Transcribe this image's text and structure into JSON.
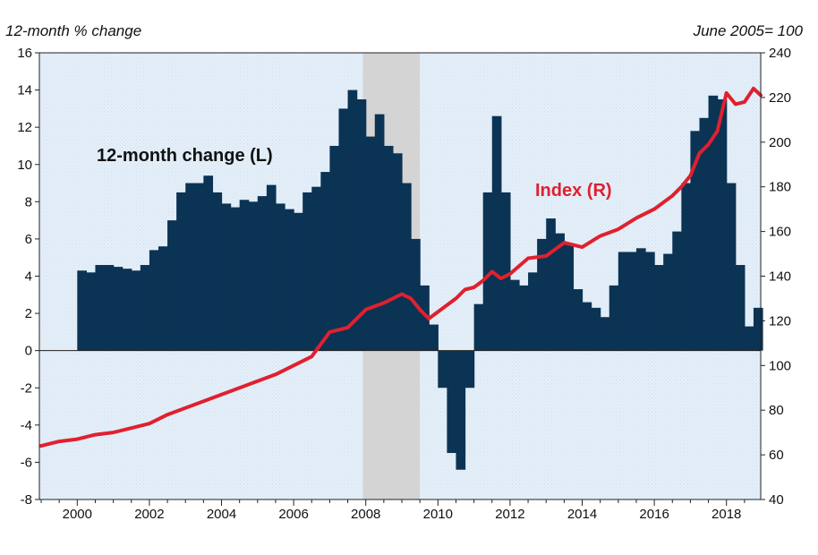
{
  "chart_data": {
    "type": "bar+line",
    "title": "",
    "left_axis": {
      "title": "12-month % change",
      "ylim": [
        -8,
        16
      ],
      "ticks": [
        -8,
        -6,
        -4,
        -2,
        0,
        2,
        4,
        6,
        8,
        10,
        12,
        14,
        16
      ]
    },
    "right_axis": {
      "title": "June 2005= 100",
      "ylim": [
        40,
        240
      ],
      "ticks": [
        40,
        60,
        80,
        100,
        120,
        140,
        160,
        180,
        200,
        220,
        240
      ]
    },
    "x_axis": {
      "xlim": [
        1998.95,
        2018.95
      ],
      "tick_labels": [
        "2000",
        "2002",
        "2004",
        "2006",
        "2008",
        "2010",
        "2012",
        "2014",
        "2016",
        "2018"
      ],
      "tick_years": [
        2000,
        2002,
        2004,
        2006,
        2008,
        2010,
        2012,
        2014,
        2016,
        2018
      ]
    },
    "recession": {
      "start": 2007.92,
      "end": 2009.5
    },
    "annotations": {
      "change_label": "12-month change (L)",
      "index_label": "Index (R)"
    },
    "colors": {
      "bars": "#0b3354",
      "line": "#e0202f",
      "recession": "#d4d4d4",
      "panel": "#e4eff8",
      "axis": "#222222"
    },
    "series": [
      {
        "name": "12-month change (L)",
        "type": "bar",
        "axis": "left",
        "points": [
          [
            2000.0,
            4.3
          ],
          [
            2000.25,
            4.2
          ],
          [
            2000.5,
            4.6
          ],
          [
            2000.75,
            4.6
          ],
          [
            2001.0,
            4.5
          ],
          [
            2001.25,
            4.4
          ],
          [
            2001.5,
            4.3
          ],
          [
            2001.75,
            4.6
          ],
          [
            2002.0,
            5.4
          ],
          [
            2002.25,
            5.6
          ],
          [
            2002.5,
            7.0
          ],
          [
            2002.75,
            8.5
          ],
          [
            2003.0,
            9.0
          ],
          [
            2003.25,
            9.0
          ],
          [
            2003.5,
            9.4
          ],
          [
            2003.75,
            8.5
          ],
          [
            2004.0,
            7.9
          ],
          [
            2004.25,
            7.7
          ],
          [
            2004.5,
            8.1
          ],
          [
            2004.75,
            8.0
          ],
          [
            2005.0,
            8.3
          ],
          [
            2005.25,
            8.9
          ],
          [
            2005.5,
            7.9
          ],
          [
            2005.75,
            7.6
          ],
          [
            2006.0,
            7.4
          ],
          [
            2006.25,
            8.5
          ],
          [
            2006.5,
            8.8
          ],
          [
            2006.75,
            9.6
          ],
          [
            2007.0,
            11.0
          ],
          [
            2007.25,
            13.0
          ],
          [
            2007.5,
            14.0
          ],
          [
            2007.75,
            13.5
          ],
          [
            2008.0,
            11.5
          ],
          [
            2008.25,
            12.7
          ],
          [
            2008.5,
            11.0
          ],
          [
            2008.75,
            10.6
          ],
          [
            2009.0,
            9.0
          ],
          [
            2009.25,
            6.0
          ],
          [
            2009.5,
            3.5
          ],
          [
            2009.75,
            1.4
          ],
          [
            2010.0,
            -2.0
          ],
          [
            2010.25,
            -5.5
          ],
          [
            2010.5,
            -6.4
          ],
          [
            2010.75,
            -2.0
          ],
          [
            2011.0,
            2.5
          ],
          [
            2011.25,
            8.5
          ],
          [
            2011.5,
            12.6
          ],
          [
            2011.75,
            8.5
          ],
          [
            2012.0,
            3.8
          ],
          [
            2012.25,
            3.5
          ],
          [
            2012.5,
            4.2
          ],
          [
            2012.75,
            6.0
          ],
          [
            2013.0,
            7.1
          ],
          [
            2013.25,
            6.3
          ],
          [
            2013.5,
            5.7
          ],
          [
            2013.75,
            3.3
          ],
          [
            2014.0,
            2.6
          ],
          [
            2014.25,
            2.3
          ],
          [
            2014.5,
            1.8
          ],
          [
            2014.75,
            3.5
          ],
          [
            2015.0,
            5.3
          ],
          [
            2015.25,
            5.3
          ],
          [
            2015.5,
            5.5
          ],
          [
            2015.75,
            5.3
          ],
          [
            2016.0,
            4.6
          ],
          [
            2016.25,
            5.2
          ],
          [
            2016.5,
            6.4
          ],
          [
            2016.75,
            9.0
          ],
          [
            2017.0,
            11.8
          ],
          [
            2017.25,
            12.5
          ],
          [
            2017.5,
            13.7
          ],
          [
            2017.75,
            13.5
          ],
          [
            2018.0,
            9.0
          ],
          [
            2018.25,
            4.6
          ],
          [
            2018.5,
            1.3
          ],
          [
            2018.75,
            2.3
          ]
        ]
      },
      {
        "name": "Index (R)",
        "type": "line",
        "axis": "right",
        "points": [
          [
            1999.0,
            64
          ],
          [
            1999.5,
            66
          ],
          [
            2000.0,
            67
          ],
          [
            2000.5,
            69
          ],
          [
            2001.0,
            70
          ],
          [
            2001.5,
            72
          ],
          [
            2002.0,
            74
          ],
          [
            2002.5,
            78
          ],
          [
            2003.0,
            81
          ],
          [
            2003.5,
            84
          ],
          [
            2004.0,
            87
          ],
          [
            2004.5,
            90
          ],
          [
            2005.0,
            93
          ],
          [
            2005.5,
            96
          ],
          [
            2006.0,
            100
          ],
          [
            2006.5,
            104
          ],
          [
            2007.0,
            115
          ],
          [
            2007.5,
            117
          ],
          [
            2008.0,
            125
          ],
          [
            2008.5,
            128
          ],
          [
            2009.0,
            132
          ],
          [
            2009.25,
            130
          ],
          [
            2009.5,
            125
          ],
          [
            2009.75,
            121
          ],
          [
            2010.0,
            124
          ],
          [
            2010.25,
            127
          ],
          [
            2010.5,
            130
          ],
          [
            2010.75,
            134
          ],
          [
            2011.0,
            135
          ],
          [
            2011.25,
            138
          ],
          [
            2011.5,
            142
          ],
          [
            2011.75,
            139
          ],
          [
            2012.0,
            141
          ],
          [
            2012.5,
            148
          ],
          [
            2013.0,
            149
          ],
          [
            2013.5,
            155
          ],
          [
            2014.0,
            153
          ],
          [
            2014.5,
            158
          ],
          [
            2015.0,
            161
          ],
          [
            2015.5,
            166
          ],
          [
            2016.0,
            170
          ],
          [
            2016.5,
            176
          ],
          [
            2016.75,
            180
          ],
          [
            2017.0,
            185
          ],
          [
            2017.25,
            195
          ],
          [
            2017.5,
            199
          ],
          [
            2017.75,
            205
          ],
          [
            2018.0,
            222
          ],
          [
            2018.25,
            217
          ],
          [
            2018.5,
            218
          ],
          [
            2018.75,
            224
          ],
          [
            2018.95,
            221
          ]
        ]
      }
    ]
  }
}
